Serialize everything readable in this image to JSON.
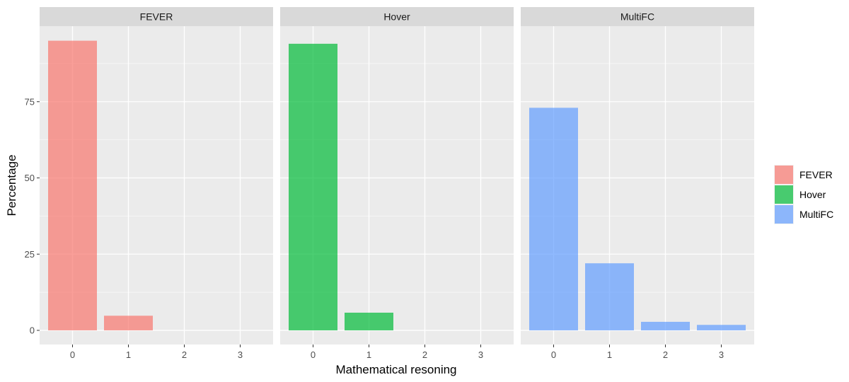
{
  "chart_data": {
    "type": "bar",
    "facet": "dataset",
    "xlabel": "Mathematical resoning",
    "ylabel": "Percentage",
    "categories": [
      "0",
      "1",
      "2",
      "3"
    ],
    "ylim": [
      0,
      100
    ],
    "yticks": [
      0,
      25,
      50,
      75
    ],
    "grid": true,
    "legend": "right",
    "series": [
      {
        "name": "FEVER",
        "color": "#F8766D",
        "values": [
          95,
          4.8,
          0,
          0
        ]
      },
      {
        "name": "Hover",
        "color": "#00BA38",
        "values": [
          94,
          5.8,
          0,
          0
        ]
      },
      {
        "name": "MultiFC",
        "color": "#619CFF",
        "values": [
          73,
          22,
          2.8,
          1.8
        ]
      }
    ]
  }
}
